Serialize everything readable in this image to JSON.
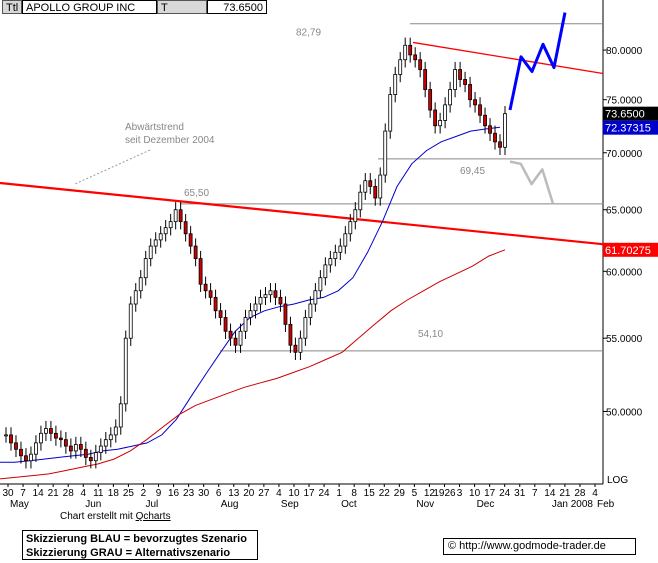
{
  "header": {
    "tag1": "Ttl",
    "name": "APOLLO GROUP INC",
    "tag2": "T",
    "price": "73.6500"
  },
  "credit": {
    "prefix": "Chart erstellt mit ",
    "tool": "Qcharts"
  },
  "legend": {
    "blue": "Skizzierung BLAU = bevorzugtes Szenario",
    "gray": "Skizzierung GRAU = Alternativszenario"
  },
  "website": "© http://www.godmode-trader.de",
  "chart_data": {
    "type": "candlestick",
    "y_axis": {
      "min": 45.5,
      "max": 84.5,
      "scale": "log",
      "position": "right",
      "ticks": [
        "80.0000",
        "75.0000",
        "70.0000",
        "65.0000",
        "60.0000",
        "55.0000",
        "50.0000"
      ],
      "scale_label": "LOG"
    },
    "x_axis": {
      "day_labels": [
        "30",
        "7",
        "14",
        "21",
        "28",
        "4",
        "11",
        "18",
        "25",
        "2",
        "9",
        "16",
        "23",
        "30",
        "6",
        "13",
        "20",
        "27",
        "4",
        "10",
        "17",
        "24",
        "1",
        "8",
        "15",
        "22",
        "29",
        "5",
        "12",
        "1926",
        "3",
        "10",
        "17",
        "24",
        "31",
        "7",
        "14",
        "21",
        "28",
        "4"
      ],
      "month_labels": [
        "May",
        "Jun",
        "Jul",
        "Aug",
        "Sep",
        "Oct",
        "Nov",
        "Dec",
        "Jan 2008",
        "Feb"
      ]
    },
    "price_badges": [
      {
        "label": "73.6500",
        "value": 73.65,
        "color": "#000000"
      },
      {
        "label": "72.37315",
        "value": 72.37,
        "color": "#0000cc"
      },
      {
        "label": "61.70275",
        "value": 61.7,
        "color": "#ff0000"
      }
    ],
    "annotations": [
      {
        "text": "82,79",
        "value": 82.79
      },
      {
        "text": "69,45",
        "value": 69.45
      },
      {
        "text": "65,50",
        "value": 65.5
      },
      {
        "text": "54,10",
        "value": 54.1
      },
      {
        "text": "Abwärtstrend",
        "value": null
      },
      {
        "text": "seit Dezember 2004",
        "value": null
      }
    ],
    "horizontal_levels": [
      82.79,
      69.45,
      65.5,
      54.1
    ],
    "trendlines": [
      {
        "name": "",
        "color": "#ff0000",
        "from": 67.3,
        "to": 61.7
      },
      {
        "name": "",
        "color": "#ff0000",
        "from": 80.8,
        "to": 77.6
      }
    ],
    "closes": [
      48.5,
      48.0,
      47.6,
      47.2,
      46.9,
      47.3,
      48.0,
      48.6,
      48.9,
      48.6,
      48.3,
      48.2,
      47.8,
      47.5,
      47.9,
      47.6,
      47.1,
      46.9,
      47.4,
      47.8,
      48.2,
      48.5,
      49.0,
      50.5,
      55.0,
      57.5,
      58.5,
      59.5,
      61.0,
      62.0,
      62.5,
      63.0,
      63.5,
      64.0,
      65.0,
      64.0,
      63.0,
      62.0,
      61.0,
      59.0,
      58.5,
      58.0,
      57.0,
      56.5,
      55.5,
      55.0,
      54.5,
      55.5,
      56.5,
      57.0,
      57.5,
      58.0,
      58.2,
      58.5,
      58.0,
      57.5,
      56.0,
      54.5,
      54.0,
      55.0,
      56.5,
      57.5,
      58.5,
      59.5,
      60.5,
      61.0,
      61.5,
      62.0,
      63.0,
      64.0,
      65.0,
      66.5,
      67.5,
      67.0,
      66.0,
      68.0,
      72.0,
      75.5,
      77.5,
      79.0,
      80.5,
      79.5,
      79.0,
      78.0,
      76.0,
      74.0,
      72.5,
      73.0,
      74.5,
      76.0,
      78.0,
      77.0,
      76.5,
      75.0,
      74.5,
      73.5,
      72.5,
      71.8,
      71.0,
      70.5,
      73.65
    ],
    "overlays": [
      {
        "name": "",
        "color": "#0000cc",
        "values": [
          46.8,
          46.8,
          46.9,
          47.0,
          47.1,
          47.2,
          47.3,
          47.5,
          47.6,
          47.8,
          48.0,
          48.5,
          49.5,
          51.0,
          52.5,
          54.0,
          55.5,
          56.5,
          57.0,
          57.3,
          57.5,
          57.8,
          58.0,
          58.5,
          59.5,
          61.5,
          64.0,
          67.0,
          69.0,
          70.2,
          71.0,
          71.5,
          72.0,
          72.2,
          72.37
        ]
      },
      {
        "name": "",
        "color": "#cc0000",
        "values": [
          45.8,
          45.9,
          46.0,
          46.1,
          46.3,
          46.5,
          46.7,
          47.0,
          47.5,
          48.2,
          49.0,
          49.8,
          50.4,
          50.8,
          51.2,
          51.6,
          51.9,
          52.2,
          52.6,
          53.0,
          53.5,
          54.0,
          55.0,
          56.0,
          57.0,
          57.8,
          58.5,
          59.2,
          59.8,
          60.4,
          61.2,
          61.7
        ]
      }
    ],
    "scenario_sketches": [
      {
        "name": "",
        "color": "#0000ff",
        "values": [
          74.0,
          79.3,
          77.8,
          80.6,
          78.2,
          84.0
        ]
      },
      {
        "name": "",
        "color": "#bbbbbb",
        "values": [
          69.2,
          69.0,
          67.2,
          68.5,
          65.5
        ]
      }
    ]
  }
}
